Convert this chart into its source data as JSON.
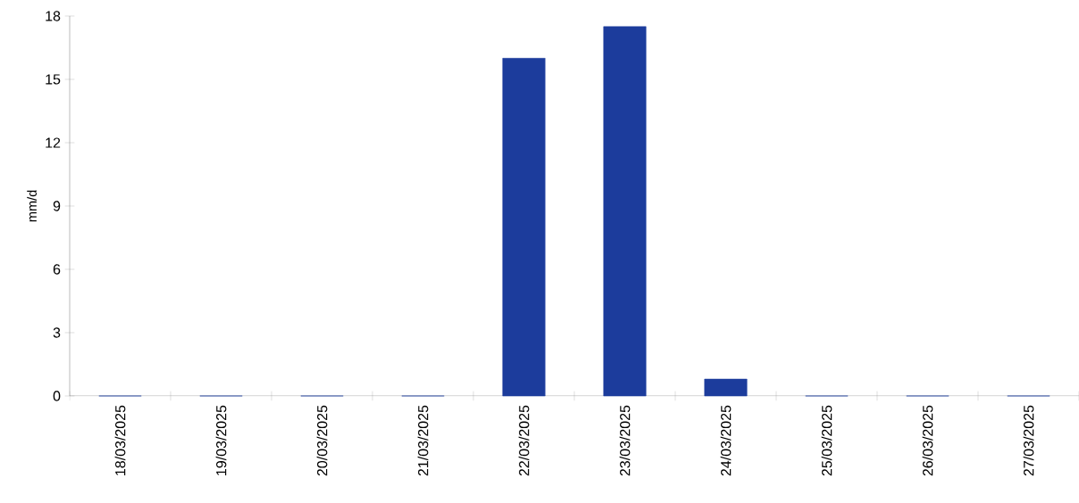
{
  "chart_data": {
    "type": "bar",
    "ylabel": "mm/d",
    "categories": [
      "18/03/2025",
      "19/03/2025",
      "20/03/2025",
      "21/03/2025",
      "22/03/2025",
      "23/03/2025",
      "24/03/2025",
      "25/03/2025",
      "26/03/2025",
      "27/03/2025"
    ],
    "values": [
      0,
      0,
      0,
      0,
      16.0,
      17.5,
      0.8,
      0,
      0,
      0
    ],
    "color": "#1c3c9c",
    "ylim": [
      0,
      18
    ],
    "yticks": [
      0,
      3,
      6,
      9,
      12,
      15,
      18
    ]
  }
}
